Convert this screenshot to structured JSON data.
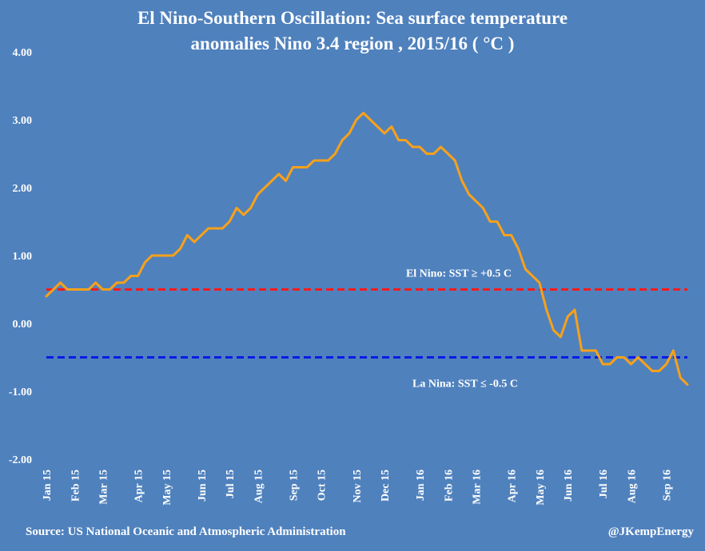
{
  "chart_data": {
    "type": "line",
    "title_line1": "El Nino-Southern Oscillation: Sea surface temperature",
    "title_line2": "anomalies Nino 3.4 region , 2015/16 ( °C )",
    "xlabel": "",
    "ylabel": "",
    "ylim": [
      -2.0,
      4.0
    ],
    "y_ticks": [
      "4.00",
      "3.00",
      "2.00",
      "1.00",
      "0.00",
      "-1.00",
      "-2.00"
    ],
    "y_tick_values": [
      4,
      3,
      2,
      1,
      0,
      -1,
      -2
    ],
    "x_tick_labels": [
      "Jan 15",
      "Feb 15",
      "Mar 15",
      "Apr 15",
      "May 15",
      "Jun 15",
      "Jul 15",
      "Aug 15",
      "Sep 15",
      "Oct 15",
      "Nov 15",
      "Dec 15",
      "Jan 16",
      "Feb 16",
      "Mar 16",
      "Apr 16",
      "May 16",
      "Jun 16",
      "Jul 16",
      "Aug 16",
      "Sep 16"
    ],
    "x_tick_index": [
      0,
      4,
      8,
      13,
      17,
      22,
      26,
      30,
      35,
      39,
      44,
      48,
      53,
      57,
      61,
      66,
      70,
      74,
      79,
      83,
      88
    ],
    "series": [
      {
        "name": "Nino 3.4 SST anomaly",
        "color": "#f7a11a",
        "values": [
          0.4,
          0.5,
          0.6,
          0.5,
          0.5,
          0.5,
          0.5,
          0.6,
          0.5,
          0.5,
          0.6,
          0.6,
          0.7,
          0.7,
          0.9,
          1.0,
          1.0,
          1.0,
          1.0,
          1.1,
          1.3,
          1.2,
          1.3,
          1.4,
          1.4,
          1.4,
          1.5,
          1.7,
          1.6,
          1.7,
          1.9,
          2.0,
          2.1,
          2.2,
          2.1,
          2.3,
          2.3,
          2.3,
          2.4,
          2.4,
          2.4,
          2.5,
          2.7,
          2.8,
          3.0,
          3.1,
          3.0,
          2.9,
          2.8,
          2.9,
          2.7,
          2.7,
          2.6,
          2.6,
          2.5,
          2.5,
          2.6,
          2.5,
          2.4,
          2.1,
          1.9,
          1.8,
          1.7,
          1.5,
          1.5,
          1.3,
          1.3,
          1.1,
          0.8,
          0.7,
          0.6,
          0.2,
          -0.1,
          -0.2,
          0.1,
          0.2,
          -0.4,
          -0.4,
          -0.4,
          -0.6,
          -0.6,
          -0.5,
          -0.5,
          -0.6,
          -0.5,
          -0.6,
          -0.7,
          -0.7,
          -0.6,
          -0.4,
          -0.8,
          -0.9
        ]
      }
    ],
    "thresholds": [
      {
        "name": "El Nino threshold",
        "value": 0.5,
        "color": "#ff1a1a",
        "label": "El Nino: SST ≥  +0.5 C"
      },
      {
        "name": "La Nina threshold",
        "value": -0.5,
        "color": "#0a1ae6",
        "label": "La Nina:  SST ≤ -0.5 C"
      }
    ],
    "grid": false,
    "legend": "none"
  },
  "footer": {
    "source": "Source: US National Oceanic and Atmospheric Administration",
    "handle": "@JKempEnergy"
  }
}
